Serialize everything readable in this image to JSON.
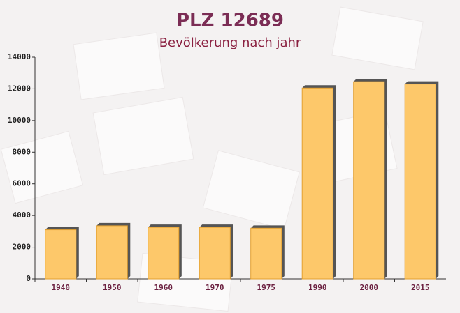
{
  "chart_data": {
    "type": "bar",
    "title": "PLZ 12689",
    "subtitle": "Bevölkerung nach jahr",
    "categories": [
      "1940",
      "1950",
      "1960",
      "1970",
      "1975",
      "1990",
      "2000",
      "2015"
    ],
    "values": [
      3100,
      3350,
      3250,
      3250,
      3200,
      12050,
      12450,
      12300
    ],
    "color": "#fdc86a",
    "ylim": [
      0,
      14000
    ],
    "yticks": [
      0,
      2000,
      4000,
      6000,
      8000,
      10000,
      12000,
      14000
    ],
    "grid": false
  }
}
